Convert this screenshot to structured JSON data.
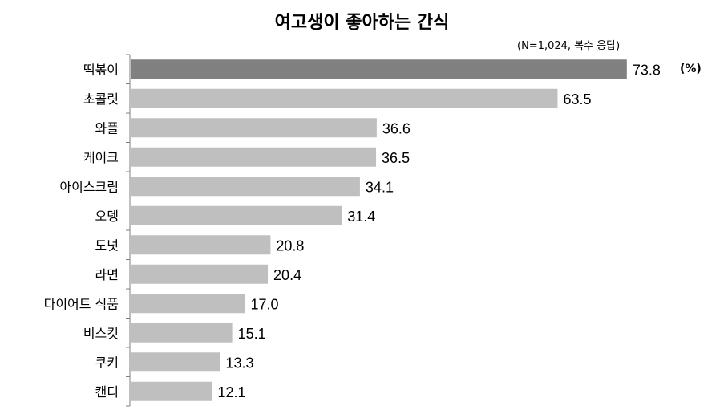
{
  "chart_data": {
    "type": "bar",
    "orientation": "horizontal",
    "title": "여고생이 좋아하는 간식",
    "subtitle": "(N=1,024, 복수 응답)",
    "unit": "(%)",
    "categories": [
      "떡볶이",
      "초콜릿",
      "와플",
      "케이크",
      "아이스크림",
      "오뎅",
      "도넛",
      "라면",
      "다이어트 식품",
      "비스킷",
      "쿠키",
      "캔디"
    ],
    "values": [
      73.8,
      63.5,
      36.6,
      36.5,
      34.1,
      31.4,
      20.8,
      20.4,
      17.0,
      15.1,
      13.3,
      12.1
    ],
    "value_labels": [
      "73.8",
      "63.5",
      "36.6",
      "36.5",
      "34.1",
      "31.4",
      "20.8",
      "20.4",
      "17.0",
      "15.1",
      "13.3",
      "12.1"
    ],
    "xlim": [
      0,
      100
    ],
    "grid": false,
    "legend": "none",
    "colors": {
      "highlight": "#808080",
      "bar": "#bfbfbf",
      "axis": "#7f7f7f"
    },
    "highlight_index": 0
  }
}
